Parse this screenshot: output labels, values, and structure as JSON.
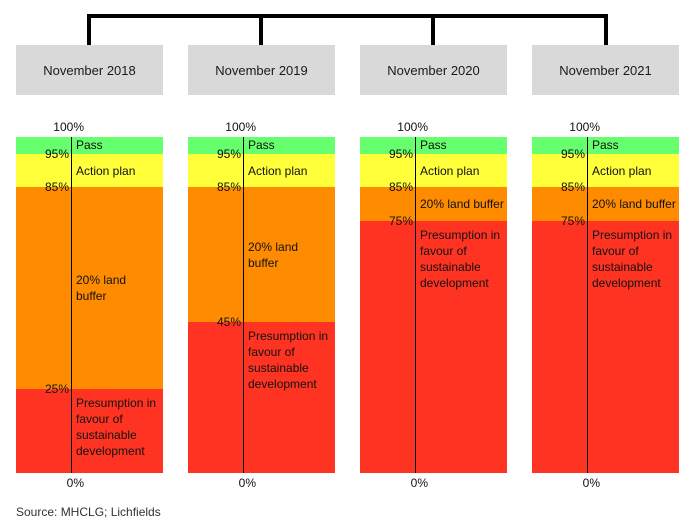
{
  "diagram": {
    "columns": [
      {
        "title": "November 2018",
        "bands": [
          {
            "label": "Pass",
            "from": 95,
            "to": 100,
            "color": "#66ff6e"
          },
          {
            "label": "Action plan",
            "from": 85,
            "to": 95,
            "color": "#ffff3a"
          },
          {
            "label": "20% land buffer",
            "from": 25,
            "to": 85,
            "color": "#ff8c00"
          },
          {
            "label": "Presumption in favour of sustainable development",
            "from": 0,
            "to": 25,
            "color": "#ff3322"
          }
        ],
        "ticks": [
          "100%",
          "95%",
          "85%",
          "25%",
          "0%"
        ]
      },
      {
        "title": "November 2019",
        "bands": [
          {
            "label": "Pass",
            "from": 95,
            "to": 100,
            "color": "#66ff6e"
          },
          {
            "label": "Action plan",
            "from": 85,
            "to": 95,
            "color": "#ffff3a"
          },
          {
            "label": "20% land buffer",
            "from": 45,
            "to": 85,
            "color": "#ff8c00"
          },
          {
            "label": "Presumption in favour of sustainable development",
            "from": 0,
            "to": 45,
            "color": "#ff3322"
          }
        ],
        "ticks": [
          "100%",
          "95%",
          "85%",
          "45%",
          "0%"
        ]
      },
      {
        "title": "November 2020",
        "bands": [
          {
            "label": "Pass",
            "from": 95,
            "to": 100,
            "color": "#66ff6e"
          },
          {
            "label": "Action plan",
            "from": 85,
            "to": 95,
            "color": "#ffff3a"
          },
          {
            "label": "20% land buffer",
            "from": 75,
            "to": 85,
            "color": "#ff8c00"
          },
          {
            "label": "Presumption in favour of sustainable development",
            "from": 0,
            "to": 75,
            "color": "#ff3322"
          }
        ],
        "ticks": [
          "100%",
          "95%",
          "85%",
          "75%",
          "0%"
        ]
      },
      {
        "title": "November 2021",
        "bands": [
          {
            "label": "Pass",
            "from": 95,
            "to": 100,
            "color": "#66ff6e"
          },
          {
            "label": "Action plan",
            "from": 85,
            "to": 95,
            "color": "#ffff3a"
          },
          {
            "label": "20% land buffer",
            "from": 75,
            "to": 85,
            "color": "#ff8c00"
          },
          {
            "label": "Presumption in favour of sustainable development",
            "from": 0,
            "to": 75,
            "color": "#ff3322"
          }
        ],
        "ticks": [
          "100%",
          "95%",
          "85%",
          "75%",
          "0%"
        ]
      }
    ],
    "source": "Source: MHCLG; Lichfields"
  }
}
